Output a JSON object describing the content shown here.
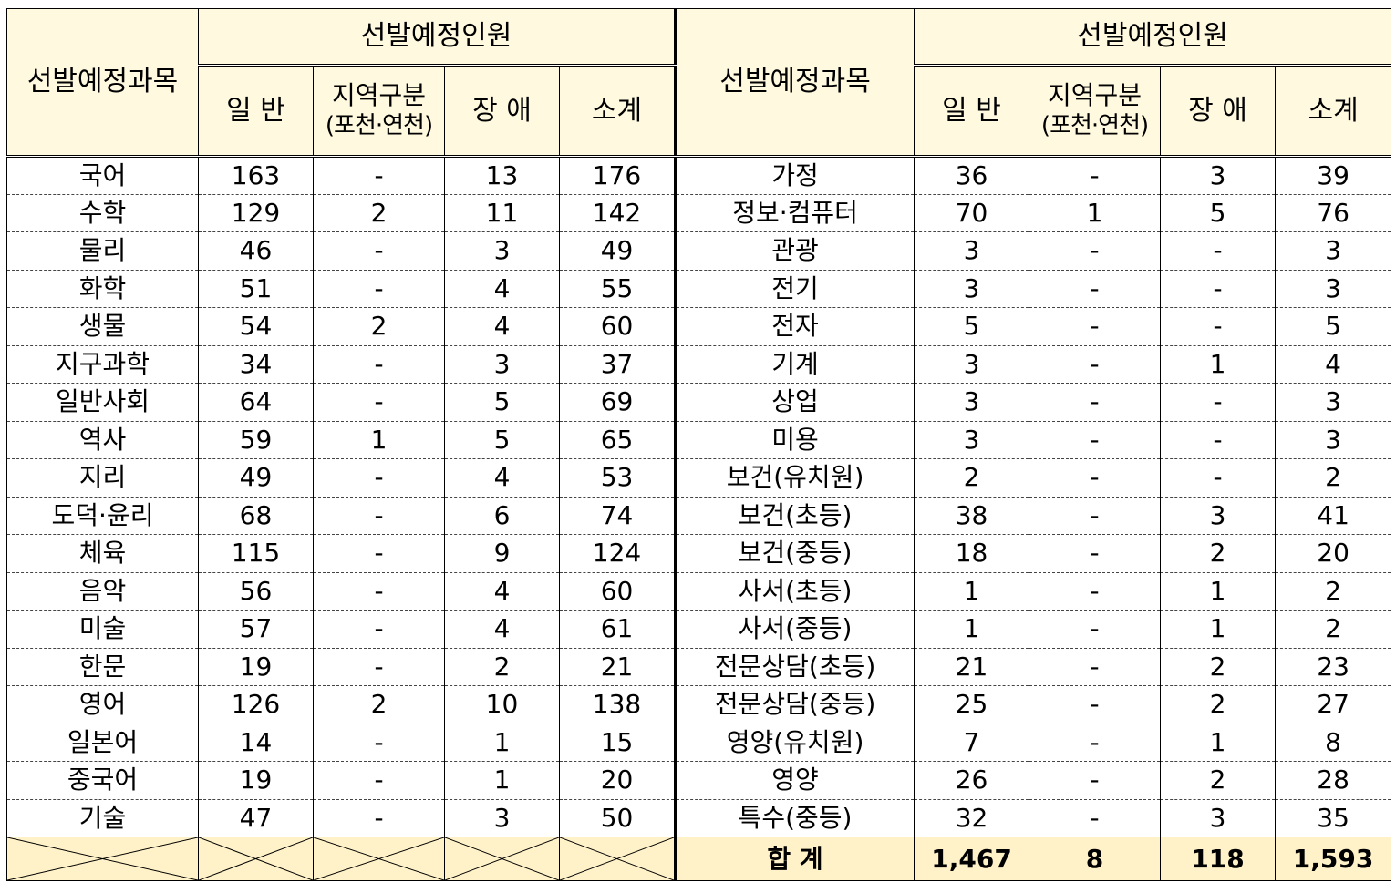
{
  "header": {
    "subject": "선발예정과목",
    "group": "선발예정인원",
    "general": "일 반",
    "region_line1": "지역구분",
    "region_line2": "(포천·연천)",
    "disabled": "장 애",
    "subtotal": "소계"
  },
  "rows": [
    {
      "left": [
        "국어",
        "163",
        "-",
        "13",
        "176"
      ],
      "right": [
        "가정",
        "36",
        "-",
        "3",
        "39"
      ]
    },
    {
      "left": [
        "수학",
        "129",
        "2",
        "11",
        "142"
      ],
      "right": [
        "정보·컴퓨터",
        "70",
        "1",
        "5",
        "76"
      ]
    },
    {
      "left": [
        "물리",
        "46",
        "-",
        "3",
        "49"
      ],
      "right": [
        "관광",
        "3",
        "-",
        "-",
        "3"
      ]
    },
    {
      "left": [
        "화학",
        "51",
        "-",
        "4",
        "55"
      ],
      "right": [
        "전기",
        "3",
        "-",
        "-",
        "3"
      ]
    },
    {
      "left": [
        "생물",
        "54",
        "2",
        "4",
        "60"
      ],
      "right": [
        "전자",
        "5",
        "-",
        "-",
        "5"
      ]
    },
    {
      "left": [
        "지구과학",
        "34",
        "-",
        "3",
        "37"
      ],
      "right": [
        "기계",
        "3",
        "-",
        "1",
        "4"
      ]
    },
    {
      "left": [
        "일반사회",
        "64",
        "-",
        "5",
        "69"
      ],
      "right": [
        "상업",
        "3",
        "-",
        "-",
        "3"
      ]
    },
    {
      "left": [
        "역사",
        "59",
        "1",
        "5",
        "65"
      ],
      "right": [
        "미용",
        "3",
        "-",
        "-",
        "3"
      ]
    },
    {
      "left": [
        "지리",
        "49",
        "-",
        "4",
        "53"
      ],
      "right": [
        "보건(유치원)",
        "2",
        "-",
        "-",
        "2"
      ]
    },
    {
      "left": [
        "도덕·윤리",
        "68",
        "-",
        "6",
        "74"
      ],
      "right": [
        "보건(초등)",
        "38",
        "-",
        "3",
        "41"
      ]
    },
    {
      "left": [
        "체육",
        "115",
        "-",
        "9",
        "124"
      ],
      "right": [
        "보건(중등)",
        "18",
        "-",
        "2",
        "20"
      ]
    },
    {
      "left": [
        "음악",
        "56",
        "-",
        "4",
        "60"
      ],
      "right": [
        "사서(초등)",
        "1",
        "-",
        "1",
        "2"
      ]
    },
    {
      "left": [
        "미술",
        "57",
        "-",
        "4",
        "61"
      ],
      "right": [
        "사서(중등)",
        "1",
        "-",
        "1",
        "2"
      ]
    },
    {
      "left": [
        "한문",
        "19",
        "-",
        "2",
        "21"
      ],
      "right": [
        "전문상담(초등)",
        "21",
        "-",
        "2",
        "23"
      ]
    },
    {
      "left": [
        "영어",
        "126",
        "2",
        "10",
        "138"
      ],
      "right": [
        "전문상담(중등)",
        "25",
        "-",
        "2",
        "27"
      ]
    },
    {
      "left": [
        "일본어",
        "14",
        "-",
        "1",
        "15"
      ],
      "right": [
        "영양(유치원)",
        "7",
        "-",
        "1",
        "8"
      ]
    },
    {
      "left": [
        "중국어",
        "19",
        "-",
        "1",
        "20"
      ],
      "right": [
        "영양",
        "26",
        "-",
        "2",
        "28"
      ]
    },
    {
      "left": [
        "기술",
        "47",
        "-",
        "3",
        "50"
      ],
      "right": [
        "특수(중등)",
        "32",
        "-",
        "3",
        "35"
      ]
    }
  ],
  "total": {
    "label": "합 계",
    "general": "1,467",
    "region": "8",
    "disabled": "118",
    "subtotal": "1,593"
  }
}
